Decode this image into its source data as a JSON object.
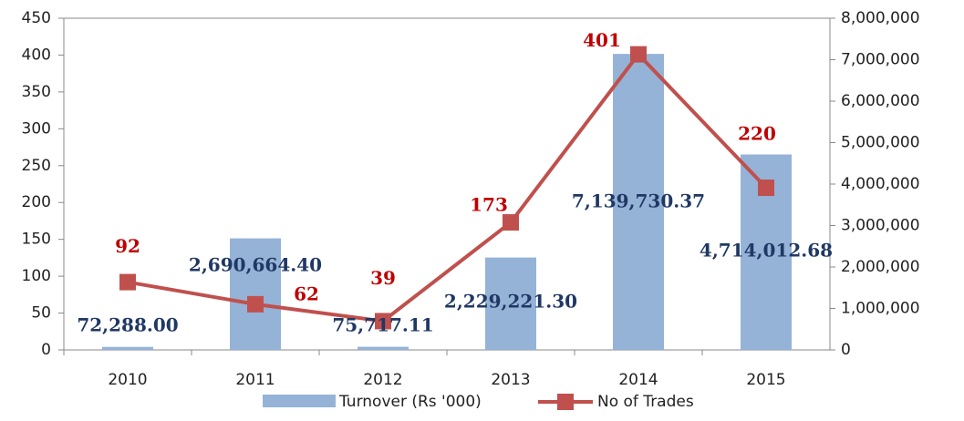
{
  "chart_data": {
    "type": "bar+line",
    "categories": [
      "2010",
      "2011",
      "2012",
      "2013",
      "2014",
      "2015"
    ],
    "series": [
      {
        "name": "Turnover (Rs '000)",
        "type": "bar",
        "color": "#95b3d7",
        "axis": "y2",
        "values": [
          72288.0,
          2690664.4,
          75717.11,
          2229221.3,
          7139730.37,
          4714012.68
        ],
        "value_labels": [
          "72,288.00",
          "2,690,664.40",
          "75,717.11",
          "2,229,221.30",
          "7,139,730.37",
          "4,714,012.68"
        ]
      },
      {
        "name": "No of Trades",
        "type": "line",
        "color": "#c0504d",
        "axis": "y",
        "values": [
          92,
          62,
          39,
          173,
          401,
          220
        ]
      }
    ],
    "ylim": [
      0,
      450
    ],
    "yticks": [
      0,
      50,
      100,
      150,
      200,
      250,
      300,
      350,
      400,
      450
    ],
    "y2lim": [
      0,
      8000000
    ],
    "y2ticks": [
      0,
      {
        "value": 1000000,
        "label": "1,000,000"
      },
      {
        "value": 2000000,
        "label": "2,000,000"
      },
      {
        "value": 3000000,
        "label": "3,000,000"
      },
      {
        "value": 4000000,
        "label": "4,000,000"
      },
      {
        "value": 5000000,
        "label": "5,000,000"
      },
      {
        "value": 6000000,
        "label": "6,000,000"
      },
      {
        "value": 7000000,
        "label": "7,000,000"
      },
      {
        "value": 8000000,
        "label": "8,000,000"
      }
    ],
    "legend": "bottom"
  }
}
